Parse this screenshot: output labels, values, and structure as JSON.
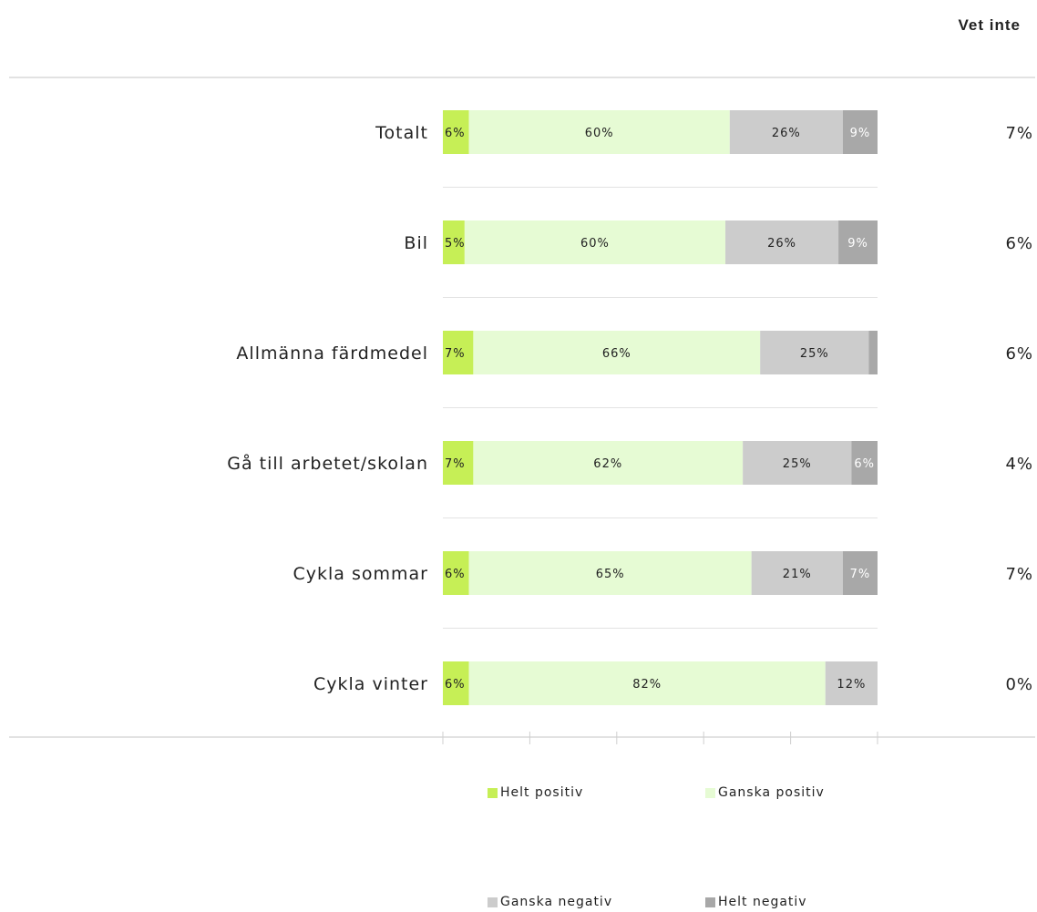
{
  "chart_data": {
    "type": "bar",
    "orientation": "horizontal",
    "stacked": true,
    "categories": [
      "Totalt",
      "Bil",
      "Allmänna färdmedel",
      "Gå till arbetet/skolan",
      "Cykla sommar",
      "Cykla vinter"
    ],
    "series": [
      {
        "name": "Helt positiv",
        "color": "#c6ef56",
        "values": [
          6,
          5,
          7,
          7,
          6,
          6
        ]
      },
      {
        "name": "Ganska positiv",
        "color": "#e6fbd4",
        "values": [
          60,
          60,
          66,
          62,
          65,
          82
        ]
      },
      {
        "name": "Ganska negativ",
        "color": "#cccccc",
        "values": [
          26,
          26,
          25,
          25,
          21,
          12
        ]
      },
      {
        "name": "Helt negativ",
        "color": "#a8a8a8",
        "values": [
          9,
          9,
          3,
          6,
          7,
          0
        ]
      }
    ],
    "value_labels": [
      [
        "6%",
        "60%",
        "26%",
        "9%"
      ],
      [
        "5%",
        "60%",
        "26%",
        "9%"
      ],
      [
        "7%",
        "66%",
        "25%",
        ""
      ],
      [
        "7%",
        "62%",
        "25%",
        "6%"
      ],
      [
        "6%",
        "65%",
        "21%",
        "7%"
      ],
      [
        "6%",
        "82%",
        "12%",
        ""
      ]
    ],
    "vet_inte": {
      "header": "Vet inte",
      "values": [
        "7%",
        "6%",
        "6%",
        "4%",
        "7%",
        "0%"
      ]
    },
    "legend_position": "bottom",
    "grid": false
  }
}
